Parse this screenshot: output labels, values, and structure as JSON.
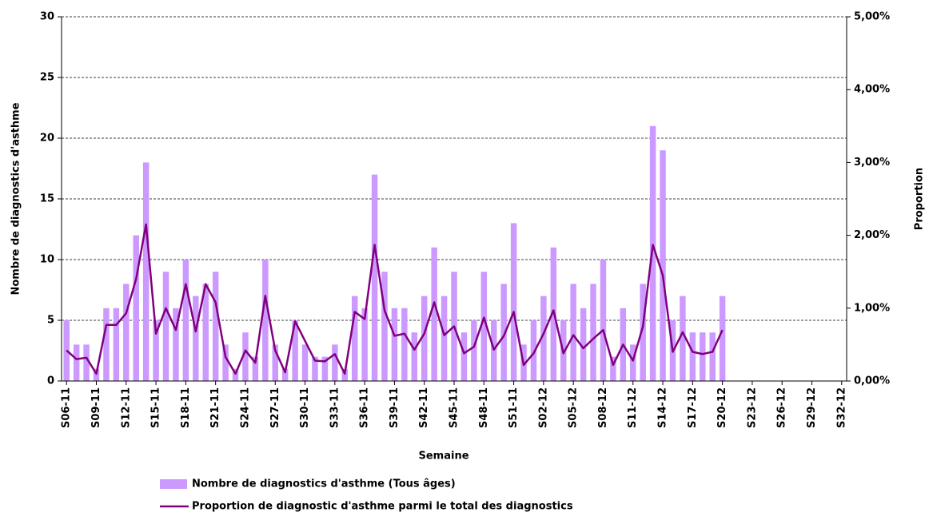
{
  "chart_data": {
    "type": "bar-line",
    "x_label": "Semaine",
    "y_label": "Nombre de diagnostics d'asthme",
    "y2_label": "Proportion",
    "categories": [
      "S06-11",
      null,
      null,
      "S09-11",
      null,
      null,
      "S12-11",
      null,
      null,
      "S15-11",
      null,
      null,
      "S18-11",
      null,
      null,
      "S21-11",
      null,
      null,
      "S24-11",
      null,
      null,
      "S27-11",
      null,
      null,
      "S30-11",
      null,
      null,
      "S33-11",
      null,
      null,
      "S36-11",
      null,
      null,
      "S39-11",
      null,
      null,
      "S42-11",
      null,
      null,
      "S45-11",
      null,
      null,
      "S48-11",
      null,
      null,
      "S51-11",
      null,
      null,
      "S02-12",
      null,
      null,
      "S05-12",
      null,
      null,
      "S08-12",
      null,
      null,
      "S11-12",
      null,
      null,
      "S14-12",
      null,
      null,
      "S17-12",
      null,
      null,
      "S20-12",
      null,
      null,
      "S23-12",
      null,
      null,
      "S26-12",
      null,
      null,
      "S29-12",
      null,
      null,
      "S32-12"
    ],
    "series": [
      {
        "name": "Nombre de diagnostics d'asthme (Tous âges)",
        "type": "bar",
        "color": "#cc99ff",
        "values": [
          5,
          3,
          3,
          1,
          6,
          6,
          8,
          12,
          18,
          5,
          9,
          6,
          10,
          7,
          8,
          9,
          3,
          1,
          4,
          2,
          10,
          3,
          1,
          5,
          3,
          2,
          2,
          3,
          1,
          7,
          6,
          17,
          9,
          6,
          6,
          4,
          7,
          11,
          7,
          9,
          4,
          5,
          9,
          5,
          8,
          13,
          3,
          5,
          7,
          11,
          5,
          8,
          6,
          8,
          10,
          2,
          6,
          3,
          8,
          21,
          19,
          5,
          7,
          4,
          4,
          4,
          7,
          null,
          null,
          null,
          null,
          null,
          null,
          null,
          null,
          null,
          null,
          null,
          null
        ]
      },
      {
        "name": "Proportion de diagnostic d'asthme parmi le total des diagnostics",
        "type": "line",
        "color": "#800080",
        "axis": "y2",
        "values": [
          0.42,
          0.3,
          0.32,
          0.1,
          0.77,
          0.77,
          0.93,
          1.4,
          2.15,
          0.65,
          1.0,
          0.7,
          1.33,
          0.68,
          1.33,
          1.08,
          0.33,
          0.1,
          0.42,
          0.25,
          1.17,
          0.42,
          0.12,
          0.82,
          0.55,
          0.28,
          0.27,
          0.37,
          0.1,
          0.95,
          0.85,
          1.87,
          0.97,
          0.62,
          0.65,
          0.43,
          0.65,
          1.08,
          0.63,
          0.75,
          0.38,
          0.47,
          0.87,
          0.43,
          0.62,
          0.95,
          0.22,
          0.38,
          0.65,
          0.97,
          0.38,
          0.63,
          0.45,
          0.58,
          0.7,
          0.22,
          0.5,
          0.28,
          0.75,
          1.87,
          1.45,
          0.4,
          0.67,
          0.4,
          0.37,
          0.4,
          0.7,
          null,
          null,
          null,
          null,
          null,
          null,
          null,
          null,
          null,
          null,
          null,
          null
        ]
      }
    ],
    "ylim": [
      0,
      30
    ],
    "yticks": [
      0,
      5,
      10,
      15,
      20,
      25,
      30
    ],
    "y2lim": [
      0,
      5
    ],
    "y2ticks": [
      {
        "value": 0,
        "label": "0,00%"
      },
      {
        "value": 1,
        "label": "1,00%"
      },
      {
        "value": 2,
        "label": "2,00%"
      },
      {
        "value": 3,
        "label": "3,00%"
      },
      {
        "value": 4,
        "label": "4,00%"
      },
      {
        "value": 5,
        "label": "5,00%"
      }
    ],
    "grid": true
  }
}
